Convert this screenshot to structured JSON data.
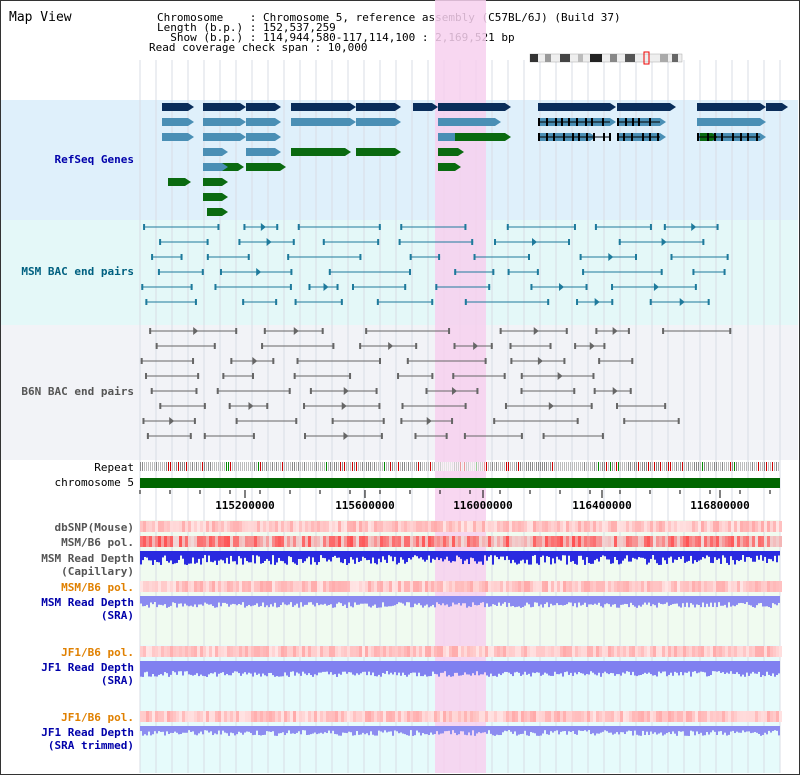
{
  "title": "Map View",
  "info": {
    "line1": "Chromosome    : Chromosome 5, reference assembly (C57BL/6J) (Build 37)",
    "line2": "Length (b.p.) : 152,537,259",
    "line3": "  Show (b.p.) : 114,944,580-117,114,100 : 2,169,521 bp",
    "line4": "Read coverage check span : 10,000"
  },
  "tracks": {
    "refseq": "RefSeq Genes",
    "msm_bac": "MSM BAC end pairs",
    "b6n_bac": "B6N BAC end pairs",
    "repeat": "Repeat",
    "chromosome": "chromosome 5",
    "dbsnp": "dbSNP(Mouse)",
    "msm_b6_pol_1": "MSM/B6 pol.",
    "msm_depth_cap_1": "MSM Read Depth",
    "msm_depth_cap_2": "(Capillary)",
    "msm_b6_pol_2": "MSM/B6 pol.",
    "msm_depth_sra_1": "MSM Read Depth",
    "msm_depth_sra_2": "(SRA)",
    "jf1_b6_pol_1": "JF1/B6 pol.",
    "jf1_depth_sra_1": "JF1 Read Depth",
    "jf1_depth_sra_2": "(SRA)",
    "jf1_b6_pol_2": "JF1/B6 pol.",
    "jf1_depth_trim_1": "JF1 Read Depth",
    "jf1_depth_trim_2": "(SRA trimmed)"
  },
  "ruler": {
    "ticks": [
      "115200000",
      "115600000",
      "116000000",
      "116400000",
      "116800000"
    ]
  },
  "colors": {
    "refseq_bg": "#dff0fb",
    "msm_bg": "#e4f8f8",
    "b6n_bg": "#f2f3f7",
    "highlight": "#f7d0ef",
    "gene_navy": "#0a2d5a",
    "gene_steel": "#4a8fb5",
    "gene_green": "#0a6a10",
    "chromosome": "#006600"
  }
}
